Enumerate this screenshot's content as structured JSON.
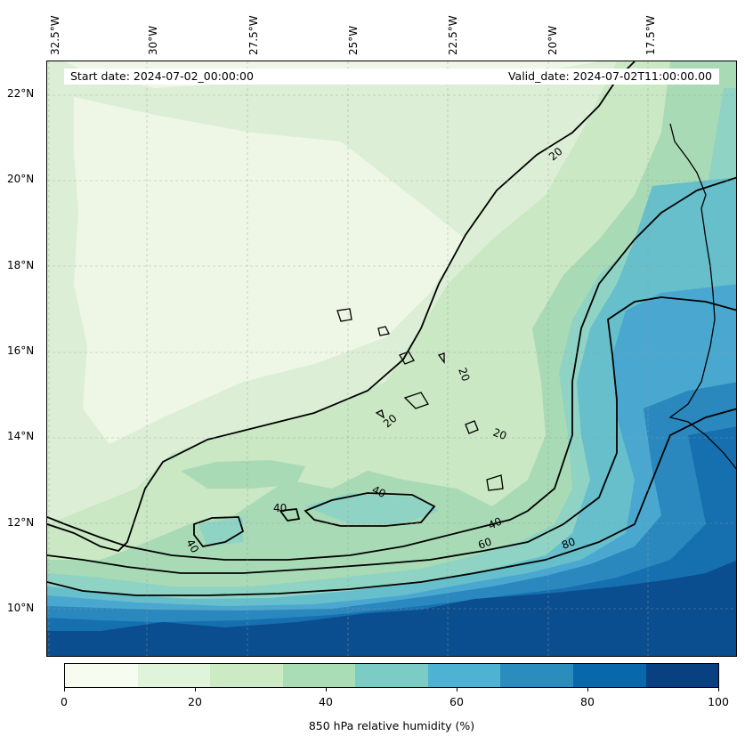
{
  "map": {
    "lon_labels": [
      "32.5°W",
      "30°W",
      "27.5°W",
      "25°W",
      "22.5°W",
      "20°W",
      "17.5°W"
    ],
    "lat_labels": [
      "22°N",
      "20°N",
      "18°N",
      "16°N",
      "14°N",
      "12°N",
      "10°N"
    ],
    "start_date": "Start date: 2024-07-02_00:00:00",
    "valid_date": "Valid_date: 2024-07-02T11:00:00.00",
    "contour_labels": [
      "20",
      "20",
      "20",
      "20",
      "40",
      "40",
      "40",
      "40",
      "60",
      "80"
    ]
  },
  "colorbar": {
    "title": "850 hPa relative humidity (%)",
    "tick_labels": [
      "0",
      "20",
      "40",
      "60",
      "80",
      "100"
    ],
    "colors": [
      "#f7fcf0",
      "#e0f3db",
      "#ccebc5",
      "#a8ddb5",
      "#7bccc4",
      "#4eb3d3",
      "#2b8cbe",
      "#0868ac",
      "#084081"
    ]
  },
  "fill_colors": [
    "#eef7e5",
    "#dcefd6",
    "#c9e8c3",
    "#a8dab5",
    "#8fd3c4",
    "#66bfcb",
    "#4aa8d0",
    "#2a88be",
    "#1670b0",
    "#0b4e8f"
  ]
}
